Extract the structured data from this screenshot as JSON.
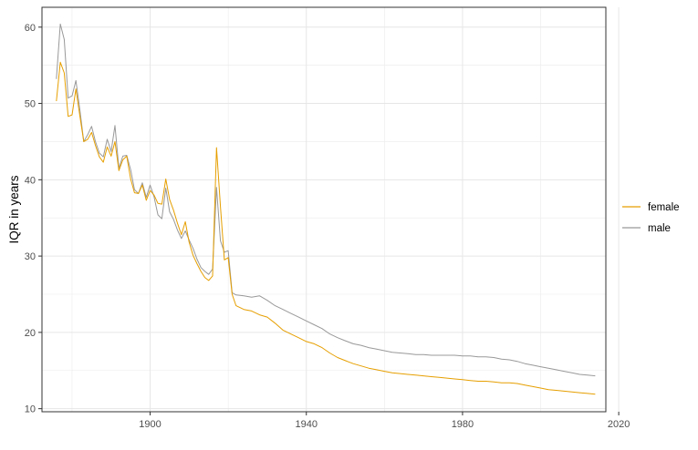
{
  "chart_data": {
    "type": "line",
    "title": "",
    "xlabel": "",
    "ylabel": "IQR in years",
    "xlim": [
      1872.3,
      2016.7
    ],
    "ylim": [
      9.6,
      62.6
    ],
    "x_ticks": [
      1900,
      1940,
      1980,
      2020
    ],
    "y_ticks": [
      10,
      20,
      30,
      40,
      50,
      60
    ],
    "grid": true,
    "legend": "right",
    "series": [
      {
        "name": "female",
        "color": "#e69f00",
        "x": [
          1876,
          1877,
          1878,
          1879,
          1880,
          1881,
          1882,
          1883,
          1884,
          1885,
          1886,
          1887,
          1888,
          1889,
          1890,
          1891,
          1892,
          1893,
          1894,
          1895,
          1896,
          1897,
          1898,
          1899,
          1900,
          1901,
          1902,
          1903,
          1904,
          1905,
          1906,
          1907,
          1908,
          1909,
          1910,
          1911,
          1912,
          1913,
          1914,
          1915,
          1916,
          1917,
          1918,
          1919,
          1920,
          1921,
          1922,
          1924,
          1926,
          1928,
          1930,
          1932,
          1934,
          1936,
          1938,
          1940,
          1942,
          1944,
          1946,
          1948,
          1950,
          1952,
          1954,
          1956,
          1958,
          1960,
          1962,
          1964,
          1966,
          1968,
          1970,
          1972,
          1974,
          1976,
          1978,
          1980,
          1982,
          1984,
          1986,
          1988,
          1990,
          1992,
          1994,
          1996,
          1998,
          2000,
          2002,
          2004,
          2006,
          2008,
          2010,
          2012,
          2014
        ],
        "values": [
          50.3,
          55.4,
          54.0,
          48.3,
          48.5,
          51.9,
          48.4,
          45.0,
          45.3,
          46.2,
          44.5,
          43.0,
          42.3,
          44.3,
          43.1,
          45.0,
          41.2,
          42.6,
          43.1,
          40.1,
          38.3,
          38.2,
          39.3,
          37.3,
          38.6,
          38.0,
          36.9,
          36.8,
          40.1,
          37.4,
          36.0,
          34.3,
          32.8,
          34.5,
          31.8,
          30.1,
          29.0,
          28.0,
          27.2,
          26.8,
          27.4,
          44.2,
          36.5,
          29.5,
          29.8,
          25.0,
          23.5,
          23.0,
          22.8,
          22.3,
          22.0,
          21.2,
          20.3,
          19.8,
          19.3,
          18.8,
          18.5,
          18.0,
          17.3,
          16.7,
          16.3,
          15.9,
          15.6,
          15.3,
          15.1,
          14.9,
          14.7,
          14.6,
          14.5,
          14.4,
          14.3,
          14.2,
          14.1,
          14.0,
          13.9,
          13.8,
          13.7,
          13.6,
          13.6,
          13.5,
          13.4,
          13.4,
          13.3,
          13.1,
          12.9,
          12.7,
          12.5,
          12.4,
          12.3,
          12.2,
          12.1,
          12.0,
          11.9
        ]
      },
      {
        "name": "male",
        "color": "#999999",
        "x": [
          1876,
          1877,
          1878,
          1879,
          1880,
          1881,
          1882,
          1883,
          1884,
          1885,
          1886,
          1887,
          1888,
          1889,
          1890,
          1891,
          1892,
          1893,
          1894,
          1895,
          1896,
          1897,
          1898,
          1899,
          1900,
          1901,
          1902,
          1903,
          1904,
          1905,
          1906,
          1907,
          1908,
          1909,
          1910,
          1911,
          1912,
          1913,
          1914,
          1915,
          1916,
          1917,
          1918,
          1919,
          1920,
          1921,
          1922,
          1924,
          1926,
          1928,
          1930,
          1932,
          1934,
          1936,
          1938,
          1940,
          1942,
          1944,
          1946,
          1948,
          1950,
          1952,
          1954,
          1956,
          1958,
          1960,
          1962,
          1964,
          1966,
          1968,
          1970,
          1972,
          1974,
          1976,
          1978,
          1980,
          1982,
          1984,
          1986,
          1988,
          1990,
          1992,
          1994,
          1996,
          1998,
          2000,
          2002,
          2004,
          2006,
          2008,
          2010,
          2012,
          2014
        ],
        "values": [
          53.2,
          60.4,
          58.4,
          50.7,
          51.0,
          53.0,
          49.2,
          45.0,
          45.9,
          47.0,
          45.0,
          43.5,
          43.0,
          45.3,
          43.7,
          47.1,
          41.5,
          43.1,
          43.2,
          41.3,
          38.7,
          38.2,
          39.6,
          37.7,
          39.3,
          37.8,
          35.4,
          34.9,
          38.9,
          35.8,
          34.8,
          33.4,
          32.3,
          33.3,
          32.1,
          31.0,
          29.6,
          28.5,
          28.0,
          27.6,
          28.3,
          39.0,
          32.0,
          30.5,
          30.7,
          25.2,
          24.9,
          24.8,
          24.6,
          24.8,
          24.2,
          23.5,
          23.0,
          22.5,
          22.0,
          21.5,
          21.0,
          20.5,
          19.8,
          19.3,
          18.9,
          18.5,
          18.3,
          18.0,
          17.8,
          17.6,
          17.4,
          17.3,
          17.2,
          17.1,
          17.1,
          17.0,
          17.0,
          17.0,
          17.0,
          16.9,
          16.9,
          16.8,
          16.8,
          16.7,
          16.5,
          16.4,
          16.2,
          15.9,
          15.7,
          15.5,
          15.3,
          15.1,
          14.9,
          14.7,
          14.5,
          14.4,
          14.3
        ]
      }
    ]
  }
}
